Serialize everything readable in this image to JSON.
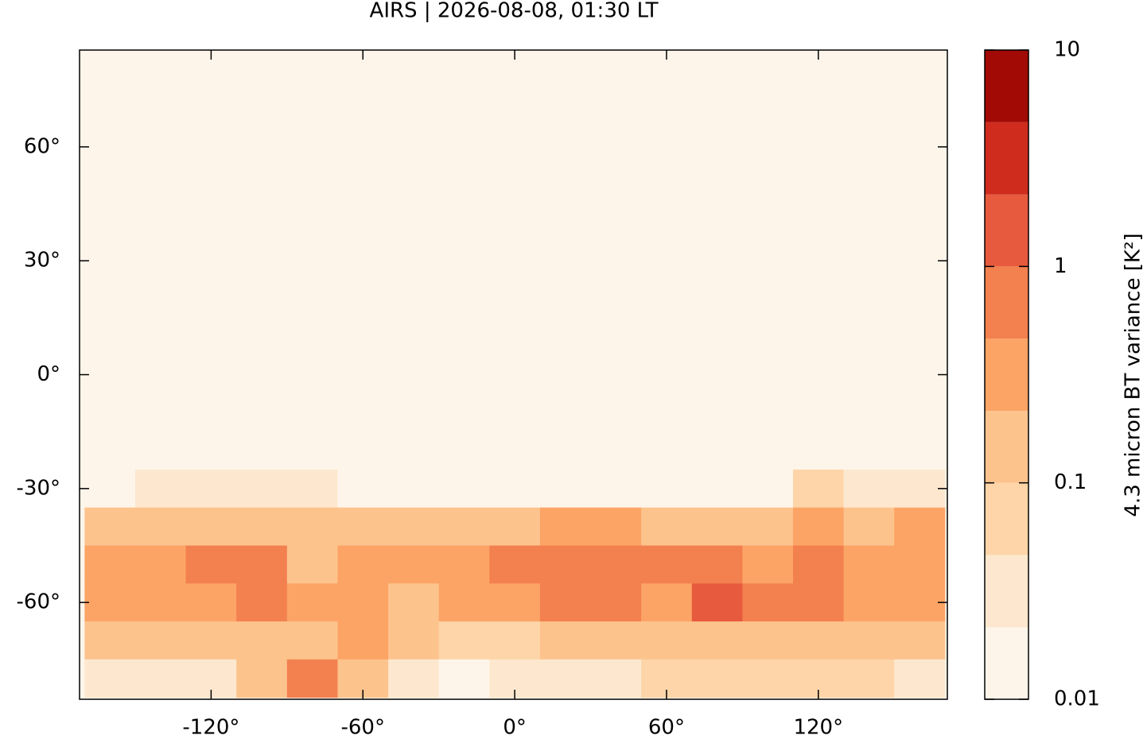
{
  "chart_data": {
    "type": "map-field",
    "title": "AIRS | 2026-08-08, 01:30 LT",
    "xlim": [
      -172,
      171
    ],
    "ylim": [
      -85.5,
      85.5
    ],
    "xticks": [
      {
        "value": -120,
        "label": "-120°"
      },
      {
        "value": -60,
        "label": "-60°"
      },
      {
        "value": 0,
        "label": "0°"
      },
      {
        "value": 60,
        "label": "60°"
      },
      {
        "value": 120,
        "label": "120°"
      }
    ],
    "yticks": [
      {
        "value": -60,
        "label": "-60°"
      },
      {
        "value": -30,
        "label": "-30°"
      },
      {
        "value": 0,
        "label": "0°"
      },
      {
        "value": 30,
        "label": "30°"
      },
      {
        "value": 60,
        "label": "60°"
      }
    ],
    "field": {
      "lon": [
        -160,
        -140,
        -120,
        -100,
        -80,
        -60,
        -40,
        -20,
        0,
        20,
        40,
        60,
        80,
        100,
        120,
        140,
        160
      ],
      "lat": [
        -30,
        -40,
        -50,
        -60,
        -70,
        -80
      ],
      "values": [
        [
          0.02,
          0.03,
          0.03,
          0.03,
          0.03,
          0.02,
          0.02,
          0.02,
          0.02,
          0.02,
          0.02,
          0.02,
          0.02,
          0.02,
          0.05,
          0.03,
          0.03
        ],
        [
          0.2,
          0.15,
          0.2,
          0.15,
          0.1,
          0.2,
          0.15,
          0.2,
          0.15,
          0.3,
          0.25,
          0.2,
          0.15,
          0.15,
          0.4,
          0.2,
          0.3
        ],
        [
          0.3,
          0.4,
          0.6,
          0.5,
          0.2,
          0.3,
          0.3,
          0.4,
          0.5,
          0.9,
          0.7,
          0.6,
          0.5,
          0.4,
          0.8,
          0.4,
          0.3
        ],
        [
          0.4,
          0.3,
          0.4,
          0.5,
          0.3,
          0.3,
          0.2,
          0.3,
          0.4,
          0.6,
          0.5,
          0.4,
          1.2,
          0.5,
          0.5,
          0.3,
          0.3
        ],
        [
          0.2,
          0.1,
          0.15,
          0.2,
          0.2,
          0.3,
          0.1,
          0.05,
          0.05,
          0.1,
          0.1,
          0.15,
          0.1,
          0.1,
          0.15,
          0.1,
          0.15
        ],
        [
          0.04,
          0.03,
          0.03,
          0.2,
          0.5,
          0.1,
          0.03,
          0.02,
          0.03,
          0.04,
          0.04,
          0.05,
          0.05,
          0.05,
          0.05,
          0.05,
          0.03
        ]
      ]
    },
    "colorbar": {
      "label": "4.3 micron BT variance [K²]",
      "log_scale": true,
      "lim": [
        0.01,
        10
      ],
      "ticks": [
        0.01,
        0.1,
        1,
        10
      ],
      "levels": [
        0.01,
        0.0215,
        0.0464,
        0.1,
        0.215,
        0.464,
        1,
        2.15,
        4.64,
        10
      ],
      "colors": [
        "#fef5ea",
        "#fde8cf",
        "#fdd5a8",
        "#fdc38d",
        "#fca466",
        "#f3804f",
        "#e85a3d",
        "#cf2c1e",
        "#a20a05"
      ]
    }
  }
}
